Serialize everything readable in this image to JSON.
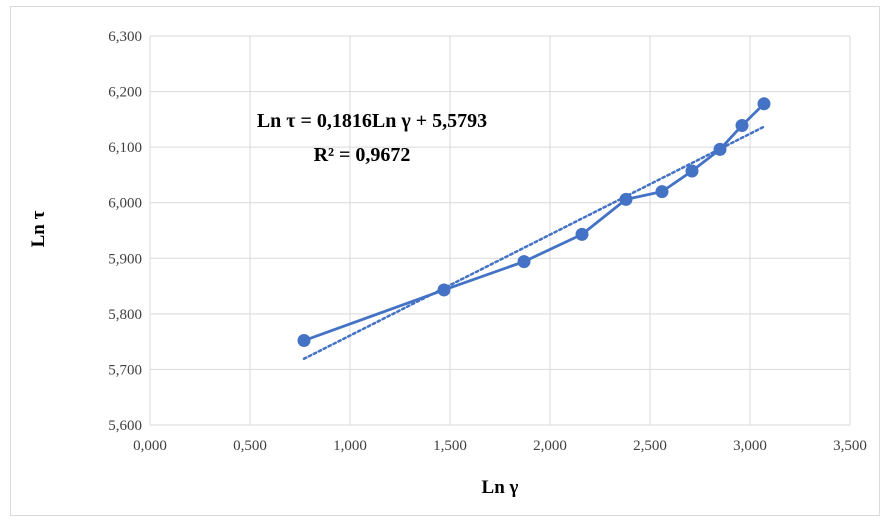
{
  "chart_data": {
    "type": "scatter",
    "xlabel": "Ln γ",
    "ylabel": "Ln τ",
    "xlim": [
      0,
      3.5
    ],
    "ylim": [
      5.6,
      6.3
    ],
    "x_ticks": [
      "0,000",
      "0,500",
      "1,000",
      "1,500",
      "2,000",
      "2,500",
      "3,000",
      "3,500"
    ],
    "y_ticks": [
      "5,600",
      "5,700",
      "5,800",
      "5,900",
      "6,000",
      "6,100",
      "6,200",
      "6,300"
    ],
    "x_tick_values": [
      0,
      0.5,
      1.0,
      1.5,
      2.0,
      2.5,
      3.0,
      3.5
    ],
    "y_tick_values": [
      5.6,
      5.7,
      5.8,
      5.9,
      6.0,
      6.1,
      6.2,
      6.3
    ],
    "grid": true,
    "series": [
      {
        "style": "line-with-markers",
        "color": "#4472C4",
        "x": [
          0.77,
          1.47,
          1.87,
          2.16,
          2.38,
          2.56,
          2.71,
          2.85,
          2.96,
          3.07
        ],
        "y": [
          5.752,
          5.843,
          5.894,
          5.943,
          6.006,
          6.02,
          6.057,
          6.096,
          6.139,
          6.178
        ]
      }
    ],
    "trendline": {
      "type": "linear",
      "style": "dotted",
      "color": "#4472C4",
      "slope": 0.1816,
      "intercept": 5.5793,
      "x_range": [
        0.77,
        3.07
      ]
    },
    "annotations": {
      "equation": "Ln τ = 0,1816Ln γ + 5,5793",
      "r_squared": "R² = 0,9672"
    }
  }
}
